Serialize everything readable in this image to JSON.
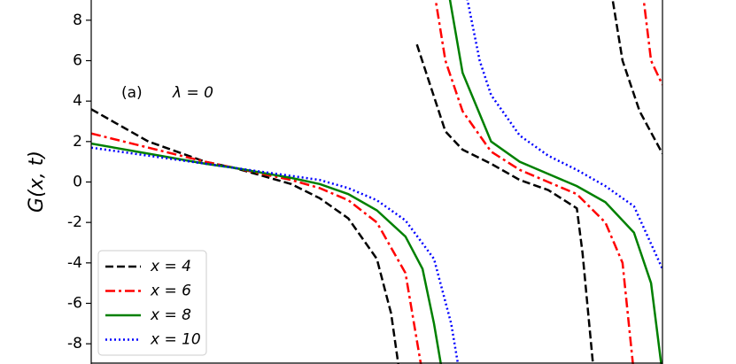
{
  "chart_data": {
    "type": "line",
    "ylabel": "G(x, t)",
    "annotations": [
      "(a)",
      "λ = 0"
    ],
    "xlim": [
      0,
      10
    ],
    "ylim": [
      -9,
      9
    ],
    "yticks": [
      -8,
      -6,
      -4,
      -2,
      0,
      2,
      4,
      6,
      8
    ],
    "legend": "lower left",
    "series": [
      {
        "name": "x = 4",
        "color": "#000000",
        "linestyle": "dashed",
        "x": [
          0,
          1,
          2,
          2.5,
          3,
          3.5,
          4,
          4.5,
          5,
          5.25,
          5.4,
          5.45,
          5.7,
          6.2,
          6.5,
          7,
          7.5,
          8,
          8.5,
          8.6,
          8.8,
          9.0,
          9.1,
          9.3,
          9.6,
          10
        ],
        "values": [
          3.6,
          2.0,
          1.0,
          0.7,
          0.3,
          -0.1,
          -0.8,
          -1.8,
          -3.8,
          -6.5,
          -9.5,
          null,
          6.8,
          2.5,
          1.6,
          0.9,
          0.1,
          -0.4,
          -1.3,
          -3.5,
          -9.5,
          null,
          9.5,
          6,
          3.5,
          1.4
        ]
      },
      {
        "name": "x = 6",
        "color": "#ff0000",
        "linestyle": "dashdot",
        "x": [
          0,
          1,
          2,
          2.5,
          3,
          3.5,
          4,
          4.5,
          5,
          5.5,
          5.8,
          5.9,
          6.0,
          6.2,
          6.5,
          7,
          7.5,
          8,
          8.5,
          9,
          9.3,
          9.5,
          9.6,
          9.65,
          9.8,
          10
        ],
        "values": [
          2.4,
          1.7,
          1.0,
          0.7,
          0.4,
          0.1,
          -0.3,
          -0.9,
          -2.0,
          -4.5,
          -9.5,
          null,
          9.5,
          6,
          3.5,
          1.5,
          0.6,
          0,
          -0.6,
          -2,
          -4,
          -9.5,
          null,
          9.5,
          6,
          4.8
        ]
      },
      {
        "name": "x = 8",
        "color": "#008000",
        "linestyle": "solid",
        "x": [
          0,
          1,
          2,
          2.5,
          3,
          3.5,
          4,
          4.5,
          5,
          5.5,
          5.8,
          6.0,
          6.15,
          6.2,
          6.25,
          6.5,
          7,
          7.5,
          8,
          8.5,
          9,
          9.5,
          9.8,
          10
        ],
        "values": [
          1.9,
          1.4,
          0.9,
          0.7,
          0.45,
          0.2,
          -0.1,
          -0.6,
          -1.4,
          -2.7,
          -4.3,
          -7,
          -9.5,
          null,
          9.5,
          5.4,
          2.0,
          1.0,
          0.4,
          -0.2,
          -1.0,
          -2.5,
          -5,
          -9.5
        ]
      },
      {
        "name": "x = 10",
        "color": "#0000ff",
        "linestyle": "dotted",
        "x": [
          0,
          1,
          2,
          2.5,
          3,
          3.5,
          4,
          4.5,
          5,
          5.5,
          6,
          6.3,
          6.45,
          6.5,
          6.55,
          6.8,
          7,
          7.5,
          8,
          8.5,
          9,
          9.5,
          10
        ],
        "values": [
          1.7,
          1.3,
          0.9,
          0.7,
          0.5,
          0.3,
          0.1,
          -0.3,
          -0.9,
          -1.9,
          -3.8,
          -7,
          -9.5,
          null,
          9.5,
          6,
          4.3,
          2.3,
          1.3,
          0.6,
          -0.2,
          -1.2,
          -4.3
        ]
      }
    ]
  }
}
